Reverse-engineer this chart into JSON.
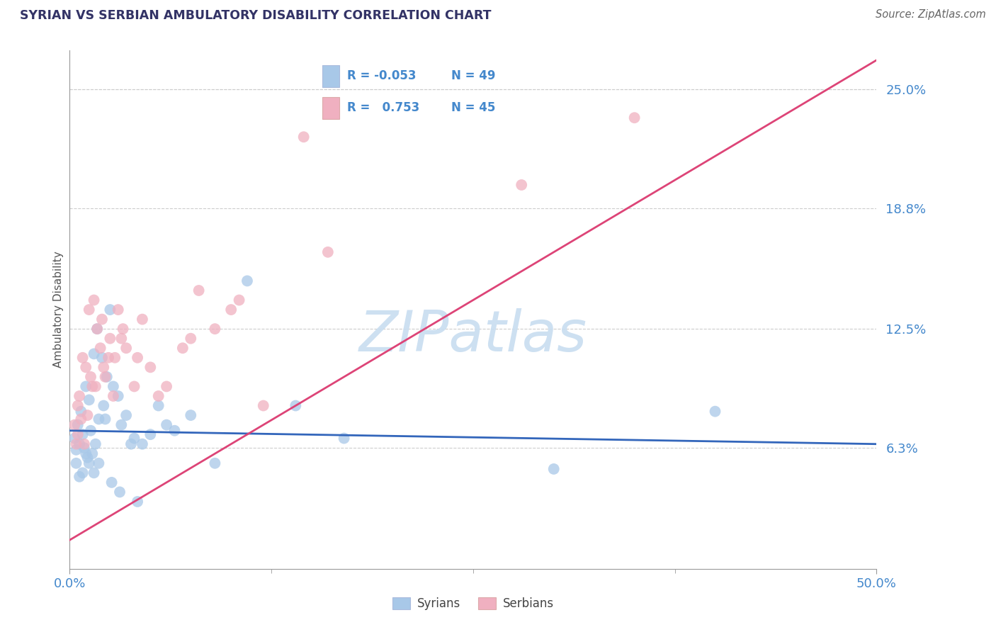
{
  "title": "SYRIAN VS SERBIAN AMBULATORY DISABILITY CORRELATION CHART",
  "source": "Source: ZipAtlas.com",
  "ylabel": "Ambulatory Disability",
  "xlim": [
    0.0,
    50.0
  ],
  "ylim": [
    0.0,
    27.0
  ],
  "ytick_values": [
    6.3,
    12.5,
    18.8,
    25.0
  ],
  "ytick_labels": [
    "6.3%",
    "12.5%",
    "18.8%",
    "25.0%"
  ],
  "grid_color": "#cccccc",
  "background_color": "#ffffff",
  "syrian_color": "#a8c8e8",
  "serbian_color": "#f0b0c0",
  "syrian_line_color": "#3366bb",
  "serbian_line_color": "#dd4477",
  "title_color": "#333366",
  "tick_color": "#4488cc",
  "axis_color": "#999999",
  "source_color": "#666666",
  "watermark_color": "#c8ddf0",
  "syrian_R": -0.053,
  "syrian_N": 49,
  "serbian_R": 0.753,
  "serbian_N": 45,
  "syrian_line_x": [
    0.0,
    50.0
  ],
  "syrian_line_y": [
    7.2,
    6.5
  ],
  "serbian_line_x": [
    0.0,
    50.0
  ],
  "serbian_line_y": [
    1.5,
    26.5
  ],
  "syrian_scatter_x": [
    0.3,
    0.4,
    0.5,
    0.6,
    0.7,
    0.8,
    0.9,
    1.0,
    1.1,
    1.2,
    1.3,
    1.4,
    1.5,
    1.6,
    1.7,
    1.8,
    2.0,
    2.1,
    2.3,
    2.5,
    2.7,
    3.0,
    3.2,
    3.5,
    3.8,
    4.0,
    4.5,
    5.0,
    5.5,
    6.5,
    7.5,
    9.0,
    11.0,
    14.0,
    17.0,
    30.0,
    40.0,
    0.4,
    0.6,
    0.8,
    1.0,
    1.2,
    1.5,
    1.8,
    2.2,
    2.6,
    3.1,
    4.2,
    6.0
  ],
  "syrian_scatter_y": [
    6.8,
    6.2,
    7.5,
    6.5,
    8.2,
    7.0,
    6.3,
    9.5,
    5.8,
    8.8,
    7.2,
    6.0,
    11.2,
    6.5,
    12.5,
    7.8,
    11.0,
    8.5,
    10.0,
    13.5,
    9.5,
    9.0,
    7.5,
    8.0,
    6.5,
    6.8,
    6.5,
    7.0,
    8.5,
    7.2,
    8.0,
    5.5,
    15.0,
    8.5,
    6.8,
    5.2,
    8.2,
    5.5,
    4.8,
    5.0,
    6.0,
    5.5,
    5.0,
    5.5,
    7.8,
    4.5,
    4.0,
    3.5,
    7.5
  ],
  "serbian_scatter_x": [
    0.3,
    0.4,
    0.5,
    0.6,
    0.7,
    0.8,
    1.0,
    1.2,
    1.4,
    1.5,
    1.7,
    1.9,
    2.0,
    2.2,
    2.5,
    2.8,
    3.0,
    3.2,
    3.5,
    4.0,
    4.5,
    5.0,
    6.0,
    7.0,
    8.0,
    9.0,
    10.0,
    12.0,
    14.5,
    16.0,
    28.0,
    35.0,
    0.5,
    0.9,
    1.1,
    1.3,
    1.6,
    2.1,
    2.4,
    2.7,
    3.3,
    4.2,
    5.5,
    7.5,
    10.5
  ],
  "serbian_scatter_y": [
    7.5,
    6.5,
    8.5,
    9.0,
    7.8,
    11.0,
    10.5,
    13.5,
    9.5,
    14.0,
    12.5,
    11.5,
    13.0,
    10.0,
    12.0,
    11.0,
    13.5,
    12.0,
    11.5,
    9.5,
    13.0,
    10.5,
    9.5,
    11.5,
    14.5,
    12.5,
    13.5,
    8.5,
    22.5,
    16.5,
    20.0,
    23.5,
    7.0,
    6.5,
    8.0,
    10.0,
    9.5,
    10.5,
    11.0,
    9.0,
    12.5,
    11.0,
    9.0,
    12.0,
    14.0
  ]
}
